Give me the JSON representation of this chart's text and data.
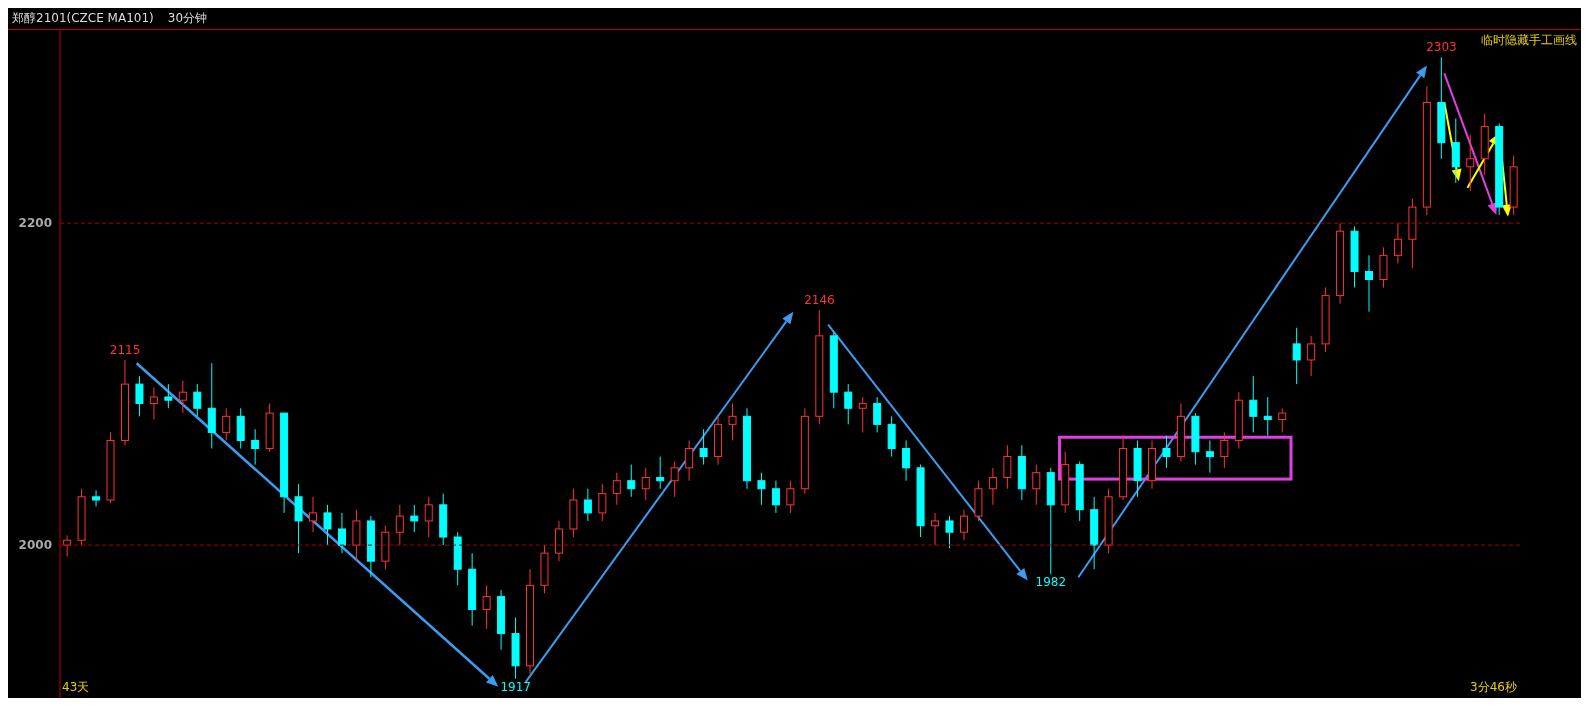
{
  "chart_data": {
    "type": "candlestick",
    "title": "郑醇2101(CZCE MA101)",
    "subtitle": "30分钟",
    "categories": [
      null,
      null,
      null,
      null,
      null,
      null,
      null,
      null,
      null,
      null,
      null,
      null,
      null,
      null,
      null,
      null,
      null,
      null,
      null,
      null,
      null,
      null,
      null,
      null,
      null,
      null,
      null,
      null,
      null,
      null,
      null,
      null,
      null,
      null,
      null,
      null,
      null,
      null,
      null,
      null,
      null,
      null,
      null,
      null,
      null,
      null,
      null,
      null,
      null,
      null,
      null,
      null,
      null,
      null,
      null,
      null,
      null,
      null,
      null,
      null,
      null,
      null,
      null,
      null,
      null,
      null,
      null,
      null,
      null,
      null,
      null,
      null,
      null,
      null,
      null,
      null,
      null,
      null,
      null,
      null,
      null,
      null,
      null,
      null,
      null,
      null,
      null,
      null,
      null,
      null,
      null,
      null,
      null,
      null,
      null,
      null,
      null,
      null,
      null,
      null,
      null
    ],
    "ohlc": [
      [
        2000,
        2006,
        1993,
        2003
      ],
      [
        2003,
        2035,
        2000,
        2030
      ],
      [
        2030,
        2034,
        2024,
        2028
      ],
      [
        2028,
        2070,
        2026,
        2065
      ],
      [
        2065,
        2115,
        2062,
        2100
      ],
      [
        2100,
        2105,
        2080,
        2088
      ],
      [
        2088,
        2098,
        2078,
        2092
      ],
      [
        2092,
        2100,
        2085,
        2090
      ],
      [
        2090,
        2102,
        2082,
        2095
      ],
      [
        2095,
        2100,
        2080,
        2085
      ],
      [
        2085,
        2113,
        2060,
        2070
      ],
      [
        2070,
        2085,
        2065,
        2080
      ],
      [
        2080,
        2085,
        2060,
        2065
      ],
      [
        2065,
        2072,
        2050,
        2060
      ],
      [
        2060,
        2088,
        2058,
        2082
      ],
      [
        2082,
        2082,
        2020,
        2030
      ],
      [
        2030,
        2038,
        1995,
        2015
      ],
      [
        2015,
        2030,
        2008,
        2020
      ],
      [
        2020,
        2025,
        2000,
        2010
      ],
      [
        2010,
        2020,
        1995,
        2000
      ],
      [
        2000,
        2022,
        1990,
        2015
      ],
      [
        2015,
        2018,
        1980,
        1990
      ],
      [
        1990,
        2012,
        1985,
        2008
      ],
      [
        2008,
        2025,
        2000,
        2018
      ],
      [
        2018,
        2025,
        2008,
        2015
      ],
      [
        2015,
        2030,
        2005,
        2025
      ],
      [
        2025,
        2032,
        2000,
        2005
      ],
      [
        2005,
        2008,
        1975,
        1985
      ],
      [
        1985,
        1995,
        1950,
        1960
      ],
      [
        1960,
        1975,
        1948,
        1968
      ],
      [
        1968,
        1972,
        1935,
        1945
      ],
      [
        1945,
        1955,
        1917,
        1925
      ],
      [
        1925,
        1985,
        1920,
        1975
      ],
      [
        1975,
        2000,
        1970,
        1995
      ],
      [
        1995,
        2015,
        1990,
        2010
      ],
      [
        2010,
        2035,
        2005,
        2028
      ],
      [
        2028,
        2035,
        2015,
        2020
      ],
      [
        2020,
        2038,
        2015,
        2032
      ],
      [
        2032,
        2045,
        2025,
        2040
      ],
      [
        2040,
        2050,
        2030,
        2035
      ],
      [
        2035,
        2048,
        2028,
        2042
      ],
      [
        2042,
        2055,
        2035,
        2040
      ],
      [
        2040,
        2052,
        2030,
        2048
      ],
      [
        2048,
        2065,
        2040,
        2060
      ],
      [
        2060,
        2072,
        2050,
        2055
      ],
      [
        2055,
        2080,
        2050,
        2075
      ],
      [
        2075,
        2088,
        2065,
        2080
      ],
      [
        2080,
        2085,
        2035,
        2040
      ],
      [
        2040,
        2045,
        2025,
        2035
      ],
      [
        2035,
        2040,
        2020,
        2025
      ],
      [
        2025,
        2040,
        2020,
        2035
      ],
      [
        2035,
        2085,
        2032,
        2080
      ],
      [
        2080,
        2146,
        2075,
        2130
      ],
      [
        2130,
        2132,
        2085,
        2095
      ],
      [
        2095,
        2100,
        2075,
        2085
      ],
      [
        2085,
        2092,
        2070,
        2088
      ],
      [
        2088,
        2092,
        2070,
        2075
      ],
      [
        2075,
        2080,
        2055,
        2060
      ],
      [
        2060,
        2065,
        2040,
        2048
      ],
      [
        2048,
        2050,
        2005,
        2012
      ],
      [
        2012,
        2020,
        2000,
        2015
      ],
      [
        2015,
        2018,
        1998,
        2008
      ],
      [
        2008,
        2022,
        2003,
        2018
      ],
      [
        2018,
        2040,
        2015,
        2035
      ],
      [
        2035,
        2048,
        2025,
        2042
      ],
      [
        2042,
        2062,
        2035,
        2055
      ],
      [
        2055,
        2062,
        2028,
        2035
      ],
      [
        2035,
        2050,
        2025,
        2045
      ],
      [
        2045,
        2048,
        1982,
        2025
      ],
      [
        2025,
        2058,
        2020,
        2050
      ],
      [
        2050,
        2052,
        2015,
        2022
      ],
      [
        2022,
        2030,
        1985,
        2000
      ],
      [
        2000,
        2035,
        1995,
        2030
      ],
      [
        2030,
        2068,
        2028,
        2060
      ],
      [
        2060,
        2065,
        2030,
        2040
      ],
      [
        2040,
        2065,
        2035,
        2060
      ],
      [
        2060,
        2068,
        2048,
        2055
      ],
      [
        2055,
        2088,
        2052,
        2080
      ],
      [
        2080,
        2082,
        2050,
        2058
      ],
      [
        2058,
        2065,
        2045,
        2055
      ],
      [
        2055,
        2070,
        2048,
        2065
      ],
      [
        2065,
        2095,
        2060,
        2090
      ],
      [
        2090,
        2105,
        2070,
        2080
      ],
      [
        2080,
        2092,
        2068,
        2078
      ],
      [
        2078,
        2085,
        2070,
        2082
      ],
      [
        2125,
        2135,
        2100,
        2115
      ],
      [
        2115,
        2130,
        2105,
        2125
      ],
      [
        2125,
        2160,
        2120,
        2155
      ],
      [
        2155,
        2200,
        2150,
        2195
      ],
      [
        2195,
        2198,
        2160,
        2170
      ],
      [
        2170,
        2180,
        2145,
        2165
      ],
      [
        2165,
        2185,
        2160,
        2180
      ],
      [
        2180,
        2200,
        2175,
        2190
      ],
      [
        2190,
        2215,
        2172,
        2210
      ],
      [
        2210,
        2285,
        2205,
        2275
      ],
      [
        2275,
        2303,
        2240,
        2250
      ],
      [
        2250,
        2265,
        2225,
        2235
      ],
      [
        2235,
        2255,
        2220,
        2240
      ],
      [
        2240,
        2268,
        2230,
        2260
      ],
      [
        2260,
        2262,
        2205,
        2210
      ],
      [
        2210,
        2242,
        2205,
        2235
      ]
    ],
    "colors": [
      "#ff3232",
      "#ff3232",
      "#00ffff",
      "#ff3232",
      "#ff3232",
      "#00ffff",
      "#ff3232",
      "#00ffff",
      "#ff3232",
      "#00ffff",
      "#00ffff",
      "#ff3232",
      "#00ffff",
      "#00ffff",
      "#ff3232",
      "#00ffff",
      "#00ffff",
      "#ff3232",
      "#00ffff",
      "#00ffff",
      "#ff3232",
      "#00ffff",
      "#ff3232",
      "#ff3232",
      "#00ffff",
      "#ff3232",
      "#00ffff",
      "#00ffff",
      "#00ffff",
      "#ff3232",
      "#00ffff",
      "#00ffff",
      "#ff3232",
      "#ff3232",
      "#ff3232",
      "#ff3232",
      "#00ffff",
      "#ff3232",
      "#ff3232",
      "#00ffff",
      "#ff3232",
      "#00ffff",
      "#ff3232",
      "#ff3232",
      "#00ffff",
      "#ff3232",
      "#ff3232",
      "#00ffff",
      "#00ffff",
      "#00ffff",
      "#ff3232",
      "#ff3232",
      "#ff3232",
      "#00ffff",
      "#00ffff",
      "#ff3232",
      "#00ffff",
      "#00ffff",
      "#00ffff",
      "#00ffff",
      "#ff3232",
      "#00ffff",
      "#ff3232",
      "#ff3232",
      "#ff3232",
      "#ff3232",
      "#00ffff",
      "#ff3232",
      "#00ffff",
      "#ff3232",
      "#00ffff",
      "#00ffff",
      "#ff3232",
      "#ff3232",
      "#00ffff",
      "#ff3232",
      "#00ffff",
      "#ff3232",
      "#00ffff",
      "#00ffff",
      "#ff3232",
      "#ff3232",
      "#00ffff",
      "#00ffff",
      "#ff3232",
      "#00ffff",
      "#ff3232",
      "#ff3232",
      "#ff3232",
      "#00ffff",
      "#00ffff",
      "#ff3232",
      "#ff3232",
      "#ff3232",
      "#ff3232",
      "#00ffff",
      "#00ffff",
      "#ff3232",
      "#ff3232",
      "#00ffff",
      "#ff3232"
    ],
    "ylim": [
      1905,
      2320
    ],
    "yticks": [
      2000,
      2200
    ],
    "grid": "y",
    "tick_labels": "y",
    "annotations": [
      {
        "text": "2115",
        "y": 2115
      },
      {
        "text": "1917",
        "y": 1917
      },
      {
        "text": "2146",
        "y": 2146
      },
      {
        "text": "1982",
        "y": 1982
      },
      {
        "text": "2303",
        "y": 2303
      },
      "临时隐藏手工画线",
      "43天",
      "3分46秒"
    ]
  }
}
